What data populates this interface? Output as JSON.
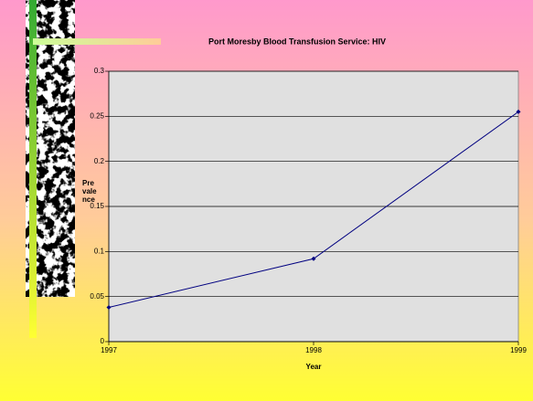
{
  "chart_data": {
    "type": "line",
    "title": "Port Moresby Blood Transfusion Service: HIV",
    "x_label": "Year",
    "y_label": "Prevalence",
    "x": [
      1997,
      1998,
      1999
    ],
    "series": [
      {
        "name": "Prevalence",
        "color": "#000080",
        "values": [
          0.038,
          0.092,
          0.255
        ]
      }
    ],
    "xlim": [
      1997,
      1999
    ],
    "xticks": [
      1997,
      1998,
      1999
    ],
    "ylim": [
      0,
      0.3
    ],
    "yticks": [
      0,
      0.05,
      0.1,
      0.15,
      0.2,
      0.25,
      0.3
    ],
    "grid": true
  }
}
